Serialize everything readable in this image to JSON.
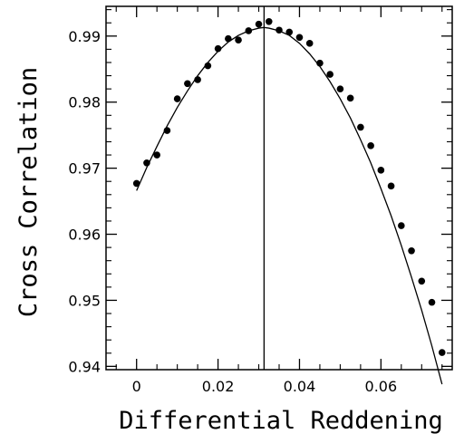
{
  "chart_data": {
    "type": "scatter",
    "title": "",
    "xlabel": "Differential Reddening",
    "ylabel": "Cross Correlation",
    "xlim": [
      -0.0075,
      0.0775
    ],
    "ylim": [
      0.9395,
      0.9945
    ],
    "x_ticks": [
      0,
      0.02,
      0.04,
      0.06
    ],
    "x_tick_labels": [
      "0",
      "0.02",
      "0.04",
      "0.06"
    ],
    "y_ticks": [
      0.94,
      0.95,
      0.96,
      0.97,
      0.98,
      0.99
    ],
    "y_tick_labels": [
      "0.94",
      "0.95",
      "0.96",
      "0.97",
      "0.98",
      "0.99"
    ],
    "vertical_line_x": 0.0313,
    "grid": false,
    "series": [
      {
        "kind": "points",
        "x": [
          0.0,
          0.0025,
          0.005,
          0.0075,
          0.01,
          0.0125,
          0.015,
          0.0175,
          0.02,
          0.0225,
          0.025,
          0.0275,
          0.03,
          0.0325,
          0.035,
          0.0375,
          0.04,
          0.0425,
          0.045,
          0.0475,
          0.05,
          0.0525,
          0.055,
          0.0575,
          0.06,
          0.0625,
          0.065,
          0.0675,
          0.07,
          0.0725,
          0.075
        ],
        "y": [
          0.9677,
          0.9708,
          0.972,
          0.9757,
          0.9805,
          0.9828,
          0.9834,
          0.9855,
          0.9881,
          0.9896,
          0.9894,
          0.9908,
          0.9918,
          0.9922,
          0.9909,
          0.9906,
          0.9898,
          0.9889,
          0.9859,
          0.9842,
          0.982,
          0.9806,
          0.9762,
          0.9734,
          0.9697,
          0.9673,
          0.9613,
          0.9575,
          0.9529,
          0.9497,
          0.9421
        ]
      },
      {
        "kind": "fit-curve",
        "x": [
          0.0,
          0.0025,
          0.005,
          0.0075,
          0.01,
          0.0125,
          0.015,
          0.0175,
          0.02,
          0.0225,
          0.025,
          0.0275,
          0.03,
          0.0313,
          0.0325,
          0.035,
          0.0375,
          0.04,
          0.0425,
          0.045,
          0.0475,
          0.05,
          0.0525,
          0.055,
          0.0575,
          0.06,
          0.0625,
          0.065,
          0.0675,
          0.07,
          0.0725,
          0.075
        ],
        "y": [
          0.9666,
          0.9701,
          0.9733,
          0.9764,
          0.9792,
          0.9817,
          0.984,
          0.986,
          0.9877,
          0.9891,
          0.9901,
          0.9908,
          0.9912,
          0.9913,
          0.9912,
          0.9908,
          0.9901,
          0.9889,
          0.9873,
          0.9854,
          0.9831,
          0.9805,
          0.9776,
          0.9743,
          0.9708,
          0.9669,
          0.9628,
          0.9583,
          0.9535,
          0.9485,
          0.9431,
          0.9373
        ]
      }
    ]
  }
}
